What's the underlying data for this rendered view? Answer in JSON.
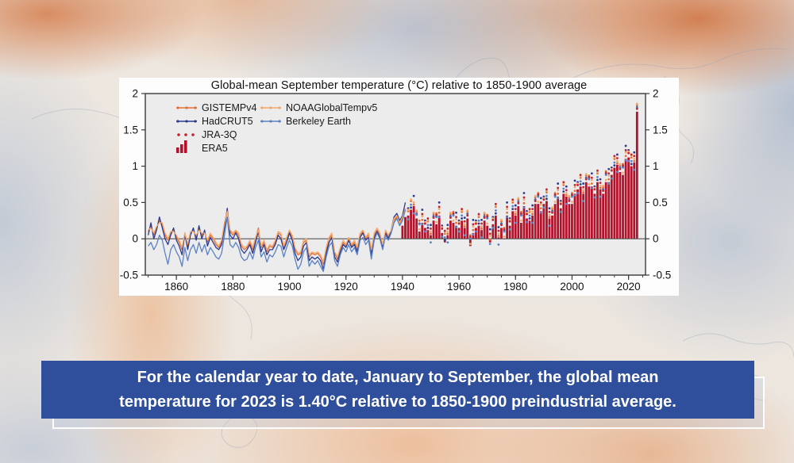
{
  "banner": {
    "line1": "For the calendar year to date, January to September, the global mean",
    "line2": "temperature for 2023 is 1.40°C relative to 1850-1900 preindustrial average.",
    "bg_color": "#2f4f9d"
  },
  "chart_data": {
    "type": "composite",
    "title": "Global-mean September temperature (°C) relative to 1850-1900 average",
    "xlim": [
      1849,
      2026
    ],
    "ylim": [
      -0.5,
      2
    ],
    "x_ticks": [
      1860,
      1880,
      1900,
      1920,
      1940,
      1960,
      1980,
      2000,
      2020
    ],
    "x_minor_step": 5,
    "y_ticks": [
      -0.5,
      0,
      0.5,
      1,
      1.5,
      2
    ],
    "plot_bg": "#ececec",
    "axis_color": "#3a3a3a",
    "zero_line_color": "#555555",
    "legend_columns": [
      [
        "GISTEMPv4",
        "HadCRUT5",
        "JRA-3Q",
        "ERA5"
      ],
      [
        "NOAAGlobalTempv5",
        "Berkeley Earth"
      ]
    ],
    "series": [
      {
        "name": "GISTEMPv4",
        "type": "line",
        "color": "#e0703a",
        "start_year": 1850,
        "values": [
          0.1,
          0.18,
          0.05,
          0.15,
          0.25,
          0.2,
          0.05,
          -0.02,
          0.08,
          0.12,
          0.02,
          -0.05,
          -0.15,
          0.05,
          -0.1,
          0.08,
          0.12,
          0.02,
          0.15,
          0.05,
          0.1,
          -0.05,
          0.05,
          0.0,
          -0.08,
          -0.12,
          -0.05,
          0.2,
          0.4,
          0.1,
          0.05,
          0.1,
          0.05,
          -0.1,
          -0.15,
          -0.12,
          -0.05,
          -0.15,
          0.0,
          0.15,
          -0.12,
          -0.05,
          -0.18,
          -0.1,
          -0.12,
          -0.05,
          0.08,
          0.05,
          -0.12,
          0.0,
          0.1,
          0.02,
          -0.15,
          -0.22,
          -0.2,
          -0.05,
          -0.02,
          -0.25,
          -0.2,
          -0.22,
          -0.2,
          -0.25,
          -0.35,
          -0.15,
          0.0,
          0.05,
          -0.2,
          -0.28,
          -0.15,
          -0.05,
          -0.1,
          0.0,
          -0.1,
          -0.05,
          -0.15,
          0.05,
          0.1,
          0.0,
          0.05,
          -0.18,
          0.05,
          0.12,
          0.05,
          -0.1,
          0.1,
          0.02,
          0.1,
          0.25,
          0.3,
          0.2,
          0.28,
          0.4
        ]
      },
      {
        "name": "HadCRUT5",
        "type": "line",
        "color": "#2b3a8f",
        "start_year": 1850,
        "values": [
          0.05,
          0.22,
          0.0,
          0.12,
          0.3,
          0.15,
          0.0,
          -0.08,
          0.05,
          0.15,
          -0.02,
          -0.1,
          -0.22,
          0.08,
          -0.15,
          0.05,
          0.15,
          -0.02,
          0.18,
          0.0,
          0.12,
          -0.1,
          0.02,
          -0.05,
          -0.12,
          -0.15,
          -0.08,
          0.15,
          0.42,
          0.05,
          0.0,
          0.08,
          0.0,
          -0.15,
          -0.2,
          -0.15,
          -0.08,
          -0.2,
          -0.05,
          0.1,
          -0.18,
          -0.08,
          -0.22,
          -0.15,
          -0.15,
          -0.08,
          0.05,
          0.0,
          -0.15,
          -0.05,
          0.08,
          -0.02,
          -0.2,
          -0.3,
          -0.25,
          -0.1,
          -0.05,
          -0.3,
          -0.25,
          -0.28,
          -0.25,
          -0.3,
          -0.42,
          -0.2,
          -0.05,
          0.02,
          -0.25,
          -0.32,
          -0.18,
          -0.08,
          -0.12,
          -0.02,
          -0.12,
          -0.08,
          -0.18,
          0.02,
          0.08,
          -0.02,
          0.02,
          -0.22,
          0.02,
          0.1,
          0.02,
          -0.12,
          0.08,
          0.0,
          0.12,
          0.3,
          0.35,
          0.25,
          0.32,
          0.5
        ]
      },
      {
        "name": "NOAAGlobalTempv5",
        "type": "line",
        "color": "#f2a96e",
        "start_year": 1850,
        "values": [
          0.12,
          0.15,
          0.08,
          0.17,
          0.22,
          0.22,
          0.08,
          0.0,
          0.1,
          0.1,
          0.05,
          -0.02,
          -0.12,
          0.08,
          -0.07,
          0.1,
          0.1,
          0.05,
          0.12,
          0.08,
          0.08,
          -0.02,
          0.08,
          0.02,
          -0.05,
          -0.1,
          -0.02,
          0.22,
          0.38,
          0.12,
          0.08,
          0.12,
          0.08,
          -0.07,
          -0.12,
          -0.1,
          -0.02,
          -0.12,
          0.02,
          0.12,
          -0.1,
          -0.02,
          -0.15,
          -0.08,
          -0.1,
          -0.02,
          0.1,
          0.08,
          -0.1,
          0.02,
          0.12,
          0.05,
          -0.12,
          -0.2,
          -0.18,
          -0.02,
          0.0,
          -0.22,
          -0.18,
          -0.2,
          -0.18,
          -0.22,
          -0.32,
          -0.12,
          0.02,
          0.08,
          -0.18,
          -0.25,
          -0.12,
          -0.02,
          -0.08,
          0.02,
          -0.08,
          -0.02,
          -0.12,
          0.08,
          0.12,
          0.02,
          0.08,
          -0.15,
          0.08,
          0.15,
          0.08,
          -0.08,
          0.12,
          0.05,
          0.12,
          0.28,
          0.32,
          0.22,
          0.3,
          0.42
        ]
      },
      {
        "name": "Berkeley Earth",
        "type": "line",
        "color": "#5b82c4",
        "start_year": 1850,
        "values": [
          -0.1,
          -0.05,
          -0.15,
          -0.08,
          0.05,
          -0.02,
          -0.2,
          -0.35,
          -0.15,
          -0.08,
          -0.18,
          -0.25,
          -0.38,
          -0.12,
          -0.3,
          -0.15,
          -0.08,
          -0.2,
          -0.05,
          -0.18,
          -0.08,
          -0.22,
          -0.12,
          -0.18,
          -0.25,
          -0.28,
          -0.2,
          0.05,
          0.3,
          -0.08,
          -0.12,
          -0.05,
          -0.12,
          -0.25,
          -0.3,
          -0.28,
          -0.18,
          -0.28,
          -0.12,
          -0.02,
          -0.25,
          -0.18,
          -0.32,
          -0.22,
          -0.25,
          -0.18,
          -0.08,
          -0.1,
          -0.25,
          -0.12,
          -0.02,
          -0.1,
          -0.28,
          -0.42,
          -0.35,
          -0.18,
          -0.12,
          -0.38,
          -0.3,
          -0.35,
          -0.3,
          -0.38,
          -0.45,
          -0.25,
          -0.1,
          -0.05,
          -0.3,
          -0.38,
          -0.22,
          -0.12,
          -0.18,
          -0.08,
          -0.18,
          -0.12,
          -0.22,
          -0.02,
          0.02,
          -0.08,
          -0.02,
          -0.28,
          -0.02,
          0.08,
          0.0,
          -0.15,
          0.05,
          -0.02,
          0.08,
          0.22,
          0.28,
          0.18,
          0.25,
          0.4
        ]
      },
      {
        "name": "ERA5",
        "type": "bar",
        "color": "#b3122b",
        "start_year": 1940,
        "values": [
          0.18,
          0.3,
          0.32,
          0.4,
          0.45,
          0.28,
          0.1,
          0.22,
          0.15,
          0.12,
          0.05,
          0.25,
          0.2,
          0.32,
          0.08,
          -0.05,
          0.05,
          0.25,
          0.22,
          0.18,
          0.15,
          0.25,
          0.15,
          0.28,
          -0.1,
          0.08,
          0.15,
          0.18,
          0.12,
          0.25,
          0.18,
          -0.05,
          0.2,
          0.32,
          0.02,
          0.15,
          0.0,
          0.32,
          0.18,
          0.38,
          0.32,
          0.45,
          0.22,
          0.45,
          0.28,
          0.25,
          0.32,
          0.48,
          0.48,
          0.38,
          0.48,
          0.52,
          0.28,
          0.32,
          0.48,
          0.58,
          0.42,
          0.62,
          0.58,
          0.48,
          0.48,
          0.62,
          0.68,
          0.72,
          0.62,
          0.78,
          0.72,
          0.72,
          0.62,
          0.78,
          0.68,
          0.62,
          0.78,
          0.78,
          0.88,
          0.98,
          1.02,
          0.92,
          0.88,
          1.1,
          1.12,
          1.0,
          1.05,
          1.75
        ]
      },
      {
        "name": "JRA-3Q",
        "type": "dots",
        "color": "#c2242f",
        "start_year": 1947
      }
    ],
    "marker_cloud": {
      "note": "post-1941 observational datasets shown as scattered dots relative to ERA5 bar values",
      "base_series": "ERA5",
      "end_year": 2023,
      "members": [
        {
          "name": "GISTEMPv4",
          "color": "#e0703a",
          "start_year": 1942,
          "offsets": [
            0.06,
            0.12,
            0.02,
            0.09,
            0.15,
            0.04
          ]
        },
        {
          "name": "HadCRUT5",
          "color": "#2b3a8f",
          "start_year": 1942,
          "offsets": [
            0.1,
            0.03,
            0.14,
            0.06,
            0.11,
            0.18
          ]
        },
        {
          "name": "NOAAGlobalTempv5",
          "color": "#f2a96e",
          "start_year": 1942,
          "offsets": [
            0.08,
            0.14,
            0.05,
            0.11,
            0.03,
            0.09
          ]
        },
        {
          "name": "Berkeley Earth",
          "color": "#5b82c4",
          "start_year": 1942,
          "offsets": [
            -0.05,
            0.07,
            -0.1,
            0.05,
            0.1,
            -0.02
          ]
        },
        {
          "name": "JRA-3Q",
          "color": "#c2242f",
          "start_year": 1947,
          "offsets": [
            0.12,
            0.06,
            0.16,
            0.09,
            0.04,
            0.13
          ]
        }
      ]
    }
  }
}
